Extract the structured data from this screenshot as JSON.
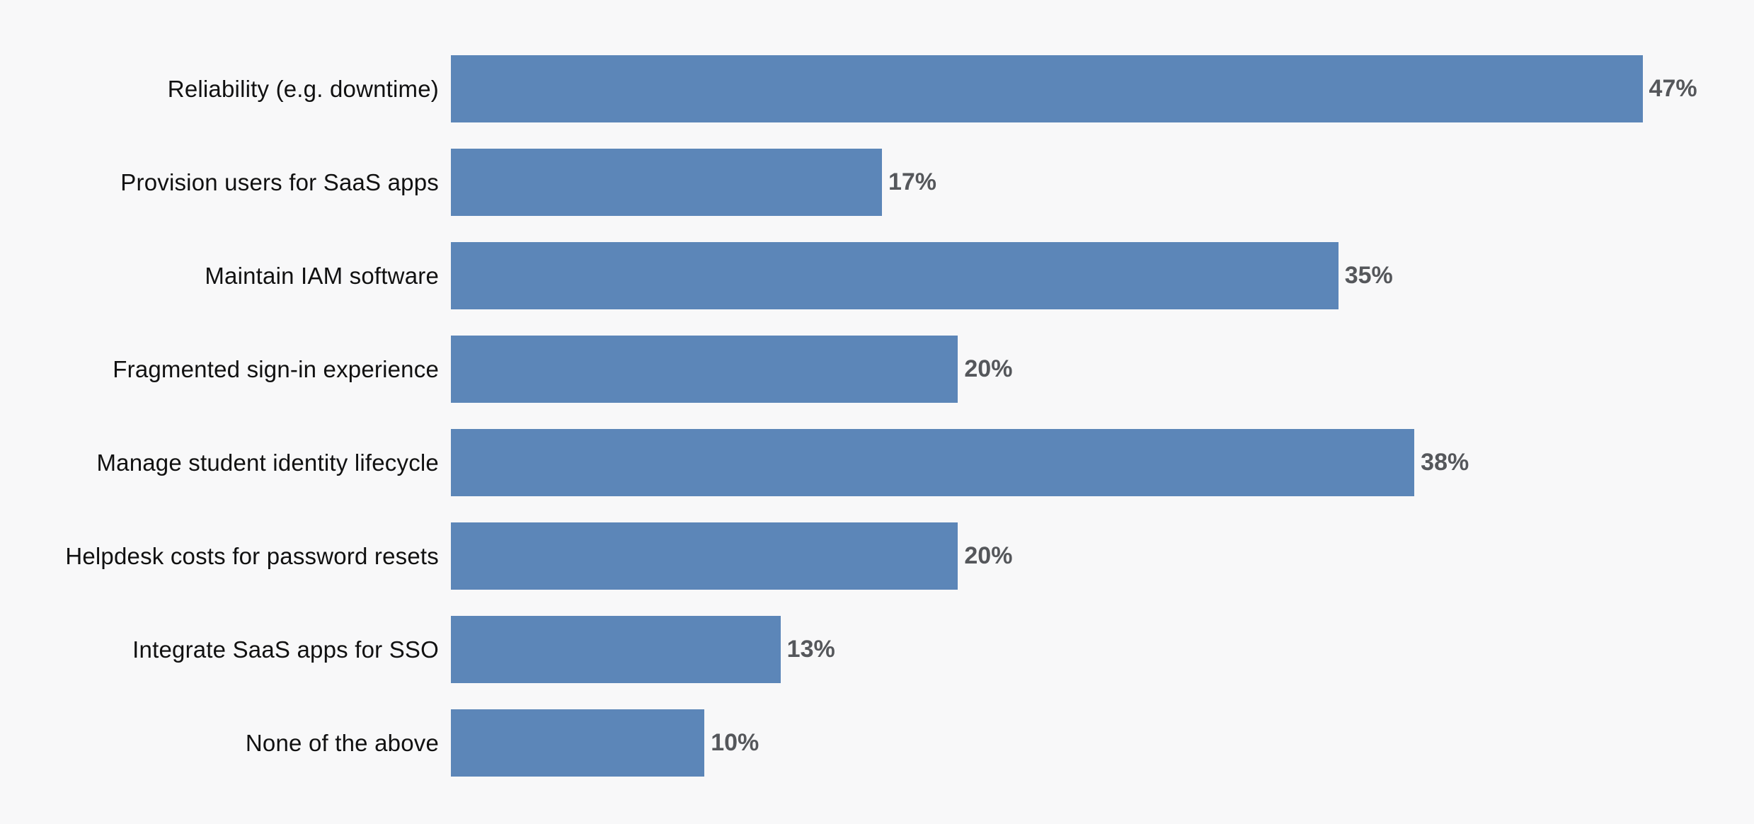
{
  "page": {
    "background_color": "#f8f8f9"
  },
  "chart_data": {
    "type": "bar",
    "orientation": "horizontal",
    "title": "",
    "xlabel": "",
    "ylabel": "",
    "categories": [
      "Reliability (e.g. downtime)",
      "Provision users for SaaS apps",
      "Maintain IAM software",
      "Fragmented sign-in experience",
      "Manage student identity lifecycle",
      "Helpdesk costs for password resets",
      "Integrate SaaS apps for SSO",
      "None of the above"
    ],
    "values": [
      47,
      17,
      35,
      20,
      38,
      20,
      13,
      10
    ],
    "value_labels": [
      "47%",
      "17%",
      "35%",
      "20%",
      "38%",
      "20%",
      "13%",
      "10%"
    ],
    "value_suffix": "%",
    "xlim": [
      0,
      50
    ],
    "grid": false,
    "legend": false,
    "bar_color": "#5c86b8",
    "category_label_color": "#111111",
    "value_label_color": "#55575b"
  }
}
